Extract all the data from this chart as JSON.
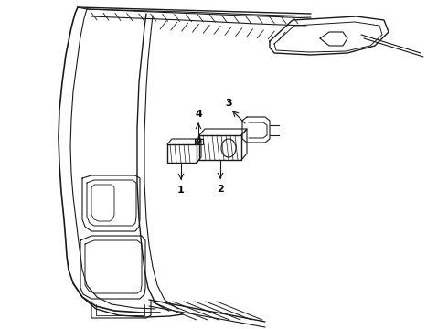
{
  "background_color": "#ffffff",
  "line_color": "#1a1a1a",
  "label_color": "#000000",
  "labels": [
    "1",
    "2",
    "3",
    "4"
  ],
  "figsize": [
    4.9,
    3.6
  ],
  "dpi": 100
}
